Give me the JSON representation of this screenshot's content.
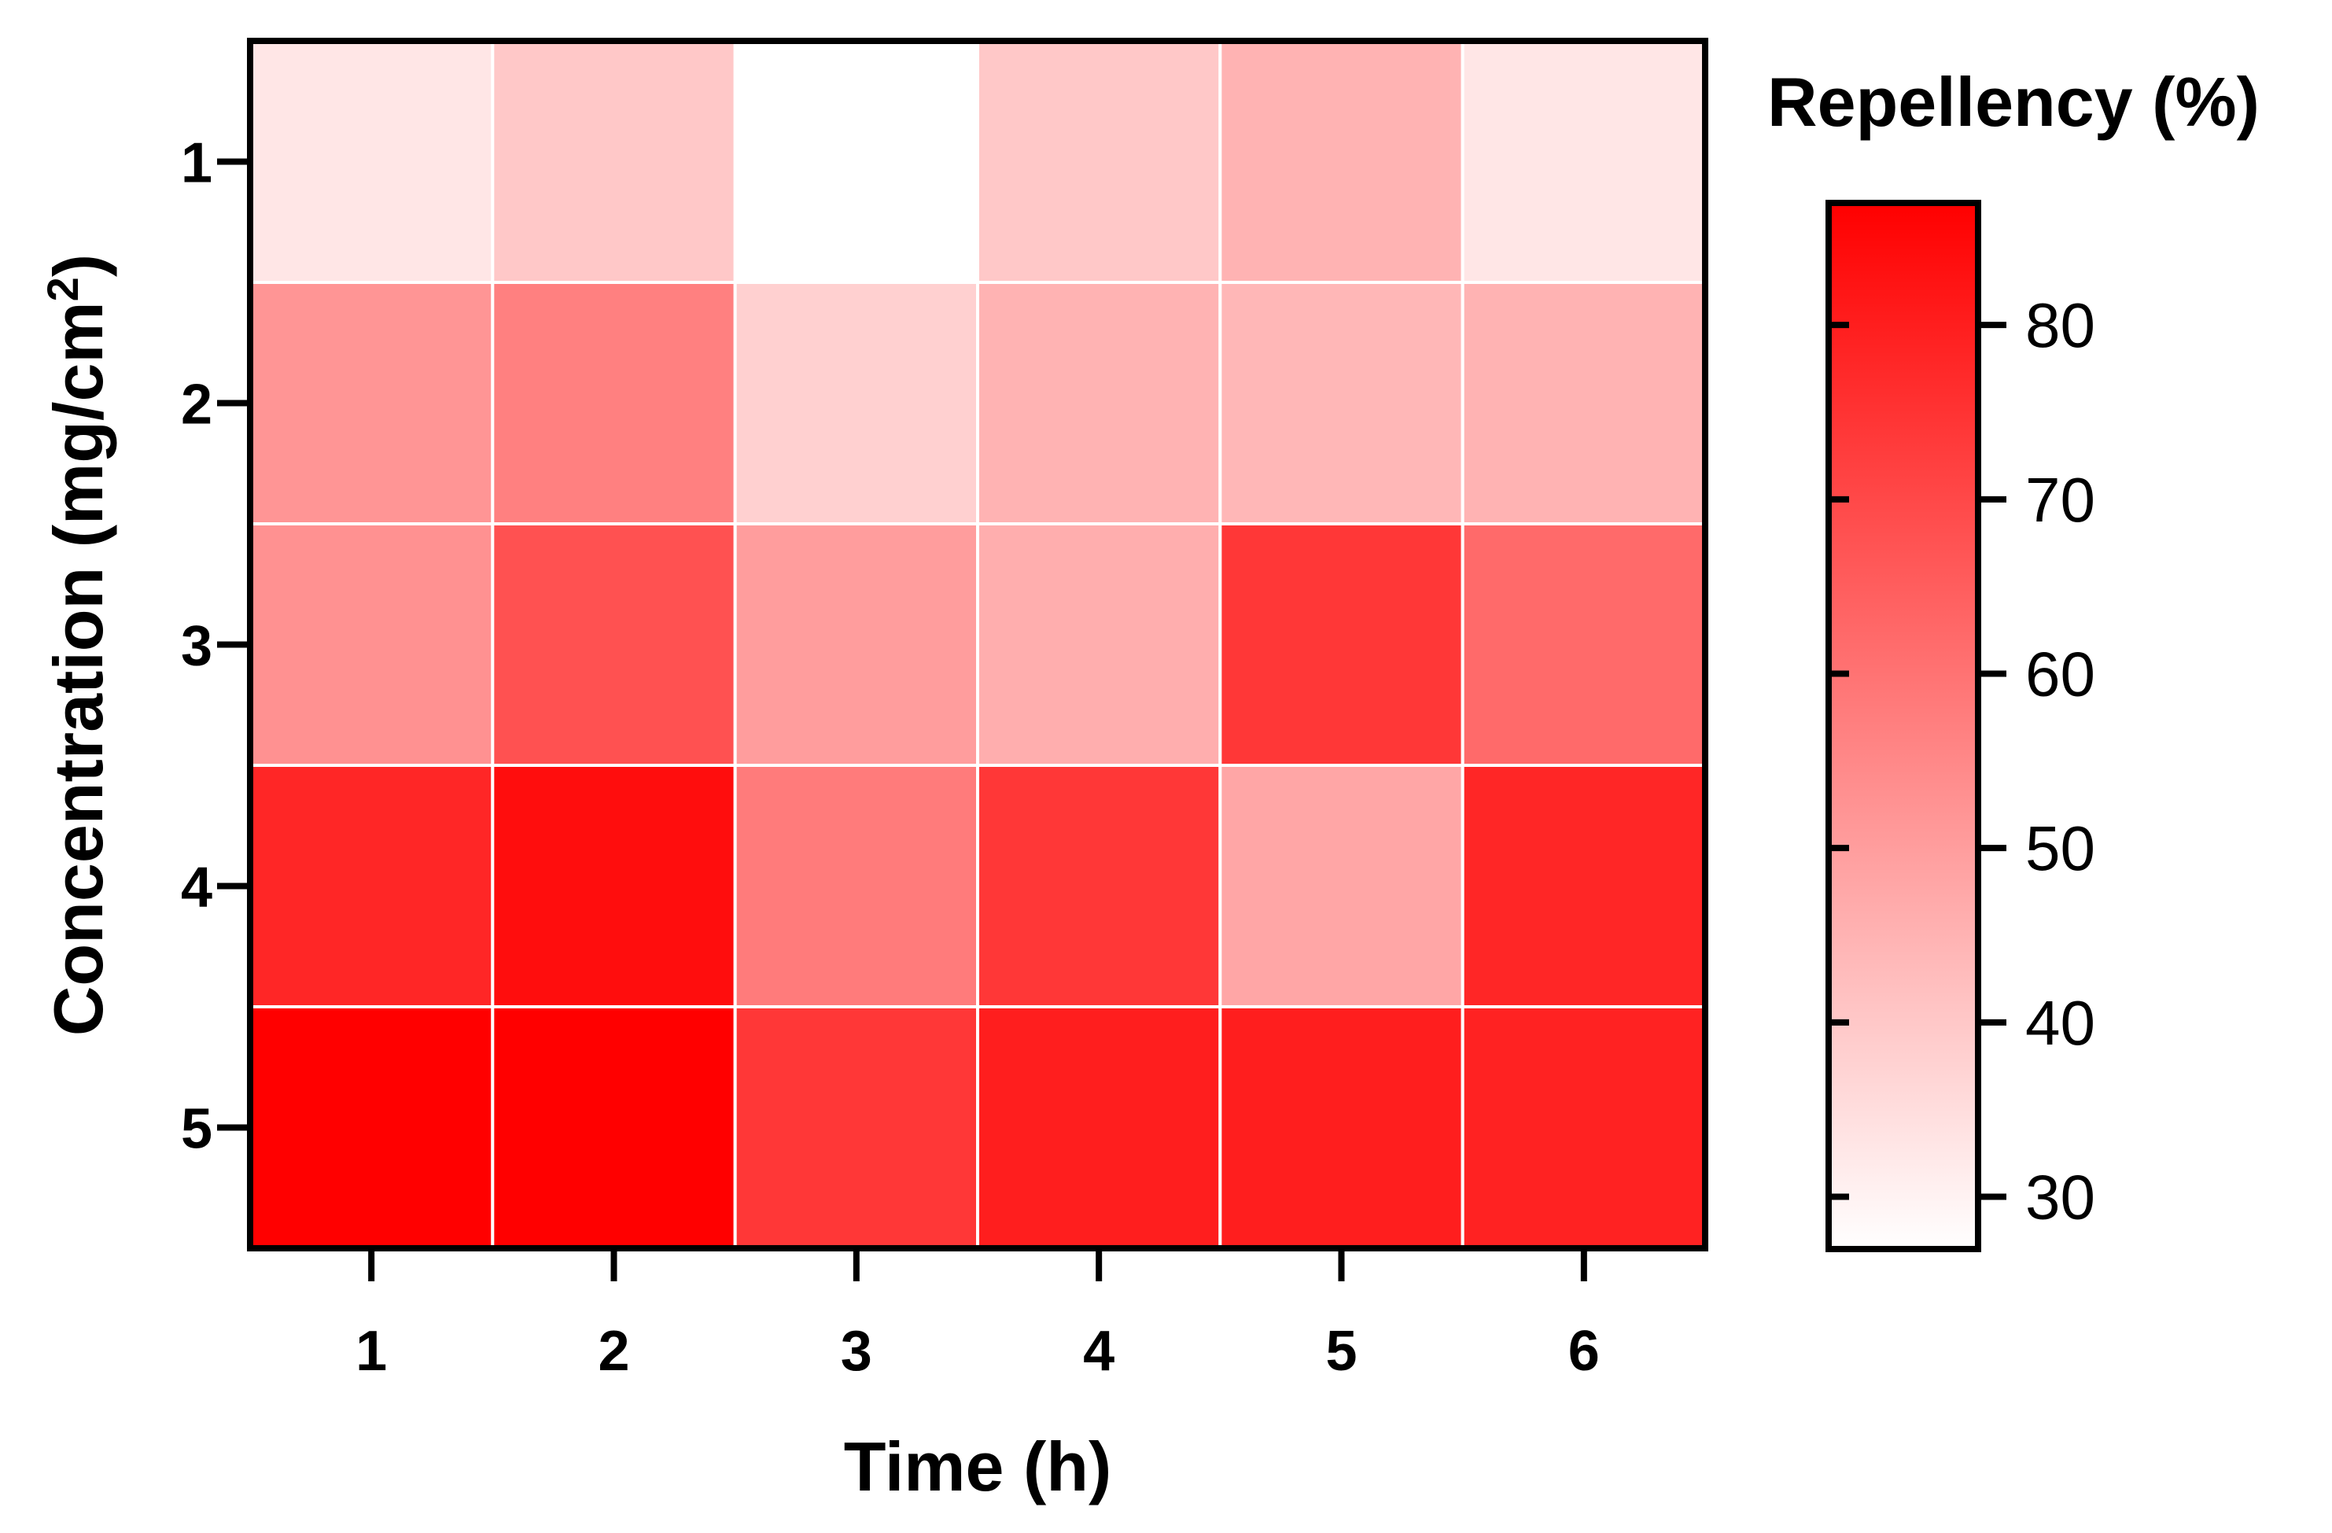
{
  "chart_data": {
    "type": "heatmap",
    "xlabel": "Time (h)",
    "ylabel": "Concentration (mg/cm",
    "ylabel_sup": "2",
    "ylabel_end": ")",
    "x_categories": [
      "1",
      "2",
      "3",
      "4",
      "5",
      "6"
    ],
    "y_categories": [
      "1",
      "2",
      "3",
      "4",
      "5"
    ],
    "values": [
      [
        33,
        40,
        27,
        40,
        45,
        33
      ],
      [
        52,
        57,
        38,
        45,
        44,
        45
      ],
      [
        53,
        68,
        50,
        46,
        74,
        62
      ],
      [
        78,
        84,
        58,
        74,
        48,
        78
      ],
      [
        87,
        87,
        74,
        80,
        80,
        79
      ]
    ],
    "colorbar": {
      "title": "Repellency (%)",
      "range": [
        27,
        87
      ],
      "ticks": [
        30,
        40,
        50,
        60,
        70,
        80
      ],
      "color_low": "#ffffff",
      "color_high": "#ff0000"
    }
  }
}
